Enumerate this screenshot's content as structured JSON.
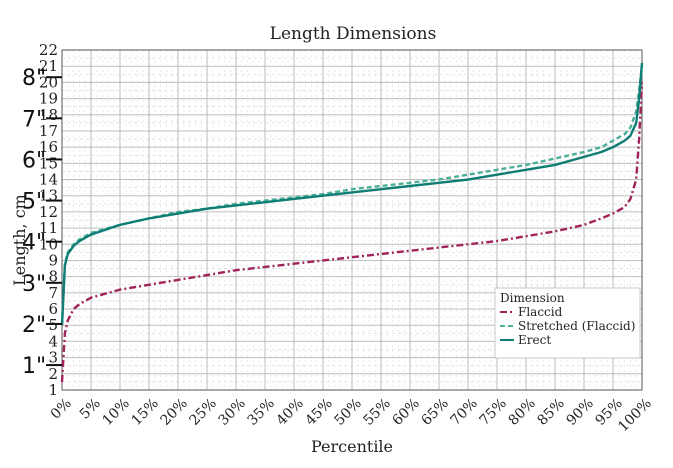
{
  "chart_data": {
    "type": "line",
    "title": "Length Dimensions",
    "xlabel": "Percentile",
    "ylabel": "Length, cm",
    "xlim": [
      0,
      100
    ],
    "ylim": [
      1,
      22
    ],
    "grid": true,
    "legend_position": "bottom-right",
    "legend_title": "Dimension",
    "x_ticks": [
      "0%",
      "5%",
      "10%",
      "15%",
      "20%",
      "25%",
      "30%",
      "35%",
      "40%",
      "45%",
      "50%",
      "55%",
      "60%",
      "65%",
      "70%",
      "75%",
      "80%",
      "85%",
      "90%",
      "95%",
      "100%"
    ],
    "y_ticks": [
      1,
      2,
      3,
      4,
      5,
      6,
      7,
      8,
      9,
      10,
      11,
      12,
      13,
      14,
      15,
      16,
      17,
      18,
      19,
      20,
      21,
      22
    ],
    "inch_annotations": [
      {
        "label": "1\"",
        "y": 2.54
      },
      {
        "label": "2\"",
        "y": 5.08
      },
      {
        "label": "3\"",
        "y": 7.62
      },
      {
        "label": "4\"",
        "y": 10.16
      },
      {
        "label": "5\"",
        "y": 12.7
      },
      {
        "label": "6\"",
        "y": 15.24
      },
      {
        "label": "7\"",
        "y": 17.78
      },
      {
        "label": "8\"",
        "y": 20.32
      }
    ],
    "series": [
      {
        "name": "Flaccid",
        "color": "#a0245a",
        "dash": "dashdot",
        "x": [
          0,
          0.5,
          1,
          2,
          3,
          5,
          10,
          15,
          20,
          25,
          30,
          35,
          40,
          45,
          50,
          55,
          60,
          65,
          70,
          75,
          80,
          85,
          90,
          93,
          95,
          97,
          98,
          99,
          99.5,
          100
        ],
        "y": [
          1.5,
          4.5,
          5.3,
          6.0,
          6.3,
          6.7,
          7.2,
          7.5,
          7.8,
          8.1,
          8.4,
          8.6,
          8.8,
          9.0,
          9.2,
          9.4,
          9.6,
          9.8,
          10.0,
          10.2,
          10.5,
          10.8,
          11.2,
          11.6,
          11.9,
          12.3,
          12.8,
          14.0,
          16.5,
          20.0
        ]
      },
      {
        "name": "Stretched (Flaccid)",
        "color": "#4caf9a",
        "dash": "dashed",
        "x": [
          0,
          0.5,
          1,
          2,
          3,
          5,
          10,
          15,
          20,
          25,
          30,
          35,
          40,
          45,
          50,
          55,
          60,
          65,
          70,
          75,
          80,
          85,
          90,
          93,
          95,
          97,
          98,
          99,
          99.5,
          100
        ],
        "y": [
          5.0,
          8.8,
          9.5,
          10.0,
          10.3,
          10.7,
          11.2,
          11.6,
          12.0,
          12.2,
          12.5,
          12.7,
          12.9,
          13.1,
          13.4,
          13.6,
          13.8,
          14.0,
          14.3,
          14.6,
          14.9,
          15.3,
          15.7,
          16.0,
          16.4,
          16.8,
          17.2,
          18.2,
          19.5,
          21.0
        ]
      },
      {
        "name": "Erect",
        "color": "#0e7d74",
        "dash": "solid",
        "x": [
          0,
          0.5,
          1,
          2,
          3,
          5,
          10,
          15,
          20,
          25,
          30,
          35,
          40,
          45,
          50,
          55,
          60,
          65,
          70,
          75,
          80,
          85,
          90,
          93,
          95,
          97,
          98,
          99,
          99.5,
          100
        ],
        "y": [
          5.0,
          8.7,
          9.4,
          9.9,
          10.2,
          10.6,
          11.2,
          11.6,
          11.9,
          12.2,
          12.4,
          12.6,
          12.8,
          13.0,
          13.2,
          13.4,
          13.6,
          13.8,
          14.0,
          14.3,
          14.6,
          14.9,
          15.4,
          15.7,
          16.0,
          16.4,
          16.7,
          17.5,
          19.0,
          21.2
        ]
      }
    ]
  }
}
